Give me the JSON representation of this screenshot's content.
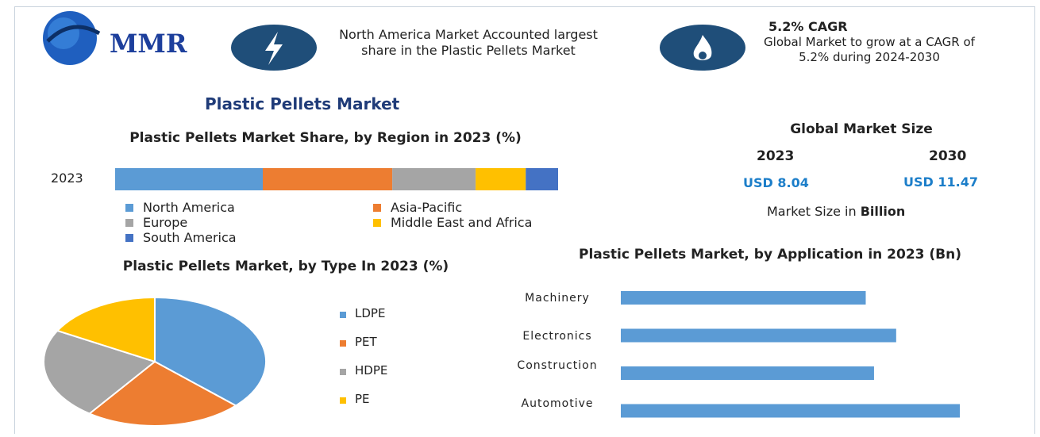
{
  "header": {
    "logo": "MMR",
    "highlight_1": "North America Market Accounted largest share in the Plastic Pellets Market",
    "highlight_2_title": "5.2% CAGR",
    "highlight_2_text": "Global Market to grow at a CAGR of 5.2% during 2024-2030"
  },
  "title": "Plastic Pellets Market",
  "market_size": {
    "title": "Global Market Size",
    "years": [
      "2023",
      "2030"
    ],
    "values": [
      "USD 8.04",
      "USD 11.47"
    ],
    "note": "Market Size in",
    "unit": "Billion"
  },
  "chart_data": [
    {
      "type": "stacked_bar",
      "title": "Plastic Pellets Market Share, by Region in 2023 (%)",
      "categories": [
        "2023"
      ],
      "series": [
        {
          "name": "North America",
          "color": "#5b9bd5",
          "values": [
            33.3
          ]
        },
        {
          "name": "Asia-Pacific",
          "color": "#ed7d31",
          "values": [
            29.2
          ]
        },
        {
          "name": "Europe",
          "color": "#a5a5a5",
          "values": [
            18.8
          ]
        },
        {
          "name": "Middle East and Africa",
          "color": "#ffc000",
          "values": [
            11.3
          ]
        },
        {
          "name": "South America",
          "color": "#4472c4",
          "values": [
            7.3
          ]
        }
      ]
    },
    {
      "type": "pie",
      "title": "Plastic Pellets Market, by Type In 2023 (%)",
      "categories": [
        "LDPE",
        "PET",
        "HDPE",
        "PE"
      ],
      "values": [
        37,
        23,
        23,
        17
      ],
      "colors": [
        "#5b9bd5",
        "#ed7d31",
        "#a5a5a5",
        "#ffc000"
      ]
    },
    {
      "type": "bar",
      "orientation": "horizontal",
      "title": "Plastic Pellets Market, by Application in 2023 (Bn)",
      "categories": [
        "Machinery",
        "Electronics",
        "Construction",
        "Automotive"
      ],
      "values": [
        1.77,
        1.99,
        1.83,
        2.45
      ],
      "color": "#5b9bd5"
    }
  ]
}
